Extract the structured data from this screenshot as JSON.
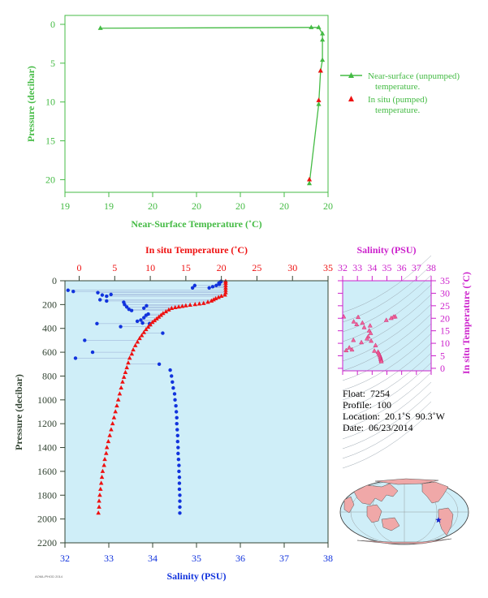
{
  "chart_data": [
    {
      "type": "line",
      "name": "near-surface-temperature-profile",
      "xlabel": "Near-Surface Temperature (˚C)",
      "ylabel": "Pressure (decibar)",
      "xticks": [
        "19",
        "19",
        "20",
        "20",
        "20",
        "20",
        "20"
      ],
      "yticks": [
        "0",
        "5",
        "10",
        "15",
        "20"
      ],
      "ylim": [
        22,
        -1
      ],
      "legend": [
        "Near-surface (unpumped) temperature.",
        "In situ (pumped) temperature."
      ],
      "legend_placement": "right",
      "colors": {
        "near_surface": "#44bb44",
        "in_situ": "#dd0000",
        "axis": "#44bb44"
      },
      "series": [
        {
          "name": "Near-surface (unpumped) temperature.",
          "points": [
            {
              "x": 19.39,
              "y": 0.5
            },
            {
              "x": 20.52,
              "y": 0.4
            },
            {
              "x": 20.56,
              "y": 0.4
            },
            {
              "x": 20.58,
              "y": 1.2
            },
            {
              "x": 20.58,
              "y": 2.0
            },
            {
              "x": 20.58,
              "y": 4.6
            },
            {
              "x": 20.57,
              "y": 6.0
            },
            {
              "x": 20.56,
              "y": 10.3
            },
            {
              "x": 20.51,
              "y": 20.5
            }
          ]
        },
        {
          "name": "In situ (pumped) temperature.",
          "points": [
            {
              "x": 20.57,
              "y": 6.0
            },
            {
              "x": 20.56,
              "y": 9.8
            },
            {
              "x": 20.51,
              "y": 20.0
            }
          ]
        }
      ]
    },
    {
      "type": "scatter",
      "name": "temperature-salinity-vs-pressure",
      "xlabel": "Salinity (PSU)",
      "x2label": "In situ Temperature (˚C)",
      "ylabel": "Pressure (decibar)",
      "xlim": [
        32,
        38
      ],
      "x2lim": [
        -2,
        35
      ],
      "ylim": [
        0,
        2200
      ],
      "xticks": [
        "32",
        "33",
        "34",
        "35",
        "36",
        "37",
        "38"
      ],
      "x2ticks": [
        "0",
        "5",
        "10",
        "15",
        "20",
        "25",
        "30",
        "35"
      ],
      "yticks": [
        "0",
        "200",
        "400",
        "600",
        "800",
        "1000",
        "1200",
        "1400",
        "1600",
        "1800",
        "2000",
        "2200"
      ],
      "colors": {
        "salinity": "#1133dd",
        "temperature": "#ee1111",
        "background": "#cfeef8",
        "axis": "#334433"
      },
      "series": [
        {
          "name": "Salinity",
          "points": [
            {
              "s": 35.56,
              "p": 5
            },
            {
              "s": 35.55,
              "p": 10
            },
            {
              "s": 35.51,
              "p": 20
            },
            {
              "s": 35.52,
              "p": 30
            },
            {
              "s": 35.45,
              "p": 40
            },
            {
              "s": 35.37,
              "p": 50
            },
            {
              "s": 35.29,
              "p": 60
            },
            {
              "s": 34.96,
              "p": 40
            },
            {
              "s": 34.91,
              "p": 60
            },
            {
              "s": 32.07,
              "p": 80
            },
            {
              "s": 32.19,
              "p": 90
            },
            {
              "s": 32.75,
              "p": 100
            },
            {
              "s": 32.85,
              "p": 120
            },
            {
              "s": 33.05,
              "p": 115
            },
            {
              "s": 32.95,
              "p": 130
            },
            {
              "s": 32.8,
              "p": 160
            },
            {
              "s": 32.95,
              "p": 170
            },
            {
              "s": 33.34,
              "p": 180
            },
            {
              "s": 33.36,
              "p": 200
            },
            {
              "s": 33.41,
              "p": 220
            },
            {
              "s": 33.46,
              "p": 240
            },
            {
              "s": 33.52,
              "p": 250
            },
            {
              "s": 33.8,
              "p": 230
            },
            {
              "s": 33.86,
              "p": 210
            },
            {
              "s": 33.9,
              "p": 280
            },
            {
              "s": 33.85,
              "p": 290
            },
            {
              "s": 33.8,
              "p": 310
            },
            {
              "s": 33.73,
              "p": 330
            },
            {
              "s": 33.65,
              "p": 340
            },
            {
              "s": 33.77,
              "p": 355
            },
            {
              "s": 33.93,
              "p": 360
            },
            {
              "s": 33.94,
              "p": 370
            },
            {
              "s": 33.27,
              "p": 385
            },
            {
              "s": 32.73,
              "p": 360
            },
            {
              "s": 34.23,
              "p": 440
            },
            {
              "s": 32.45,
              "p": 500
            },
            {
              "s": 32.63,
              "p": 600
            },
            {
              "s": 32.24,
              "p": 650
            },
            {
              "s": 34.15,
              "p": 700
            },
            {
              "s": 34.4,
              "p": 750
            },
            {
              "s": 34.43,
              "p": 800
            },
            {
              "s": 34.45,
              "p": 850
            },
            {
              "s": 34.47,
              "p": 900
            },
            {
              "s": 34.5,
              "p": 950
            },
            {
              "s": 34.51,
              "p": 1000
            },
            {
              "s": 34.53,
              "p": 1050
            },
            {
              "s": 34.54,
              "p": 1100
            },
            {
              "s": 34.55,
              "p": 1150
            },
            {
              "s": 34.55,
              "p": 1200
            },
            {
              "s": 34.56,
              "p": 1250
            },
            {
              "s": 34.57,
              "p": 1300
            },
            {
              "s": 34.57,
              "p": 1350
            },
            {
              "s": 34.58,
              "p": 1400
            },
            {
              "s": 34.58,
              "p": 1450
            },
            {
              "s": 34.59,
              "p": 1500
            },
            {
              "s": 34.6,
              "p": 1550
            },
            {
              "s": 34.6,
              "p": 1600
            },
            {
              "s": 34.61,
              "p": 1650
            },
            {
              "s": 34.61,
              "p": 1700
            },
            {
              "s": 34.61,
              "p": 1750
            },
            {
              "s": 34.62,
              "p": 1800
            },
            {
              "s": 34.62,
              "p": 1850
            },
            {
              "s": 34.62,
              "p": 1900
            },
            {
              "s": 34.62,
              "p": 1950
            }
          ]
        },
        {
          "name": "In situ Temperature",
          "points": [
            {
              "t": 20.6,
              "p": 5
            },
            {
              "t": 20.6,
              "p": 20
            },
            {
              "t": 20.6,
              "p": 40
            },
            {
              "t": 20.6,
              "p": 60
            },
            {
              "t": 20.6,
              "p": 80
            },
            {
              "t": 20.6,
              "p": 100
            },
            {
              "t": 20.5,
              "p": 120
            },
            {
              "t": 20.0,
              "p": 130
            },
            {
              "t": 19.6,
              "p": 140
            },
            {
              "t": 19.2,
              "p": 150
            },
            {
              "t": 18.9,
              "p": 160
            },
            {
              "t": 18.6,
              "p": 170
            },
            {
              "t": 18.1,
              "p": 180
            },
            {
              "t": 17.5,
              "p": 190
            },
            {
              "t": 16.9,
              "p": 195
            },
            {
              "t": 16.3,
              "p": 200
            },
            {
              "t": 15.6,
              "p": 205
            },
            {
              "t": 15.0,
              "p": 210
            },
            {
              "t": 14.5,
              "p": 215
            },
            {
              "t": 14.0,
              "p": 220
            },
            {
              "t": 13.5,
              "p": 225
            },
            {
              "t": 13.0,
              "p": 232
            },
            {
              "t": 12.6,
              "p": 245
            },
            {
              "t": 12.2,
              "p": 260
            },
            {
              "t": 11.8,
              "p": 275
            },
            {
              "t": 11.5,
              "p": 290
            },
            {
              "t": 11.2,
              "p": 305
            },
            {
              "t": 10.9,
              "p": 320
            },
            {
              "t": 10.6,
              "p": 335
            },
            {
              "t": 10.3,
              "p": 350
            },
            {
              "t": 10.0,
              "p": 370
            },
            {
              "t": 9.7,
              "p": 390
            },
            {
              "t": 9.4,
              "p": 410
            },
            {
              "t": 9.1,
              "p": 435
            },
            {
              "t": 8.8,
              "p": 460
            },
            {
              "t": 8.5,
              "p": 485
            },
            {
              "t": 8.2,
              "p": 515
            },
            {
              "t": 7.9,
              "p": 545
            },
            {
              "t": 7.6,
              "p": 580
            },
            {
              "t": 7.4,
              "p": 615
            },
            {
              "t": 7.1,
              "p": 650
            },
            {
              "t": 6.9,
              "p": 690
            },
            {
              "t": 6.7,
              "p": 730
            },
            {
              "t": 6.5,
              "p": 770
            },
            {
              "t": 6.3,
              "p": 810
            },
            {
              "t": 6.1,
              "p": 850
            },
            {
              "t": 5.9,
              "p": 900
            },
            {
              "t": 5.7,
              "p": 950
            },
            {
              "t": 5.5,
              "p": 1000
            },
            {
              "t": 5.3,
              "p": 1050
            },
            {
              "t": 5.1,
              "p": 1100
            },
            {
              "t": 4.9,
              "p": 1150
            },
            {
              "t": 4.7,
              "p": 1200
            },
            {
              "t": 4.5,
              "p": 1250
            },
            {
              "t": 4.3,
              "p": 1300
            },
            {
              "t": 4.1,
              "p": 1350
            },
            {
              "t": 3.9,
              "p": 1400
            },
            {
              "t": 3.8,
              "p": 1450
            },
            {
              "t": 3.6,
              "p": 1500
            },
            {
              "t": 3.5,
              "p": 1550
            },
            {
              "t": 3.3,
              "p": 1600
            },
            {
              "t": 3.2,
              "p": 1650
            },
            {
              "t": 3.1,
              "p": 1700
            },
            {
              "t": 3.0,
              "p": 1750
            },
            {
              "t": 2.9,
              "p": 1800
            },
            {
              "t": 2.8,
              "p": 1850
            },
            {
              "t": 2.8,
              "p": 1900
            },
            {
              "t": 2.7,
              "p": 1950
            }
          ]
        }
      ]
    },
    {
      "type": "scatter",
      "name": "ts-diagram",
      "xlabel": "Salinity (PSU)",
      "ylabel": "In situ Temperature (˚C)",
      "xlim": [
        32,
        38
      ],
      "ylim": [
        -1,
        35
      ],
      "xticks": [
        "32",
        "33",
        "34",
        "35",
        "36",
        "37",
        "38"
      ],
      "yticks": [
        "0",
        "5",
        "10",
        "15",
        "20",
        "25",
        "30",
        "35"
      ],
      "colors": {
        "points": "#ee1177",
        "axis": "#cc22cc",
        "background": "#cfeef8"
      },
      "series": [
        {
          "name": "T-S",
          "points": [
            {
              "s": 35.56,
              "t": 20.6
            },
            {
              "s": 35.45,
              "t": 20.5
            },
            {
              "s": 35.29,
              "t": 20.0
            },
            {
              "s": 34.96,
              "t": 19.2
            },
            {
              "s": 32.07,
              "t": 20.6
            },
            {
              "s": 32.75,
              "t": 18.6
            },
            {
              "s": 33.05,
              "t": 20.4
            },
            {
              "s": 32.95,
              "t": 17.5
            },
            {
              "s": 33.34,
              "t": 18.1
            },
            {
              "s": 33.46,
              "t": 16.3
            },
            {
              "s": 33.8,
              "t": 15.0
            },
            {
              "s": 33.86,
              "t": 17.0
            },
            {
              "s": 33.9,
              "t": 14.0
            },
            {
              "s": 33.73,
              "t": 12.6
            },
            {
              "s": 33.65,
              "t": 11.8
            },
            {
              "s": 33.93,
              "t": 10.9
            },
            {
              "s": 33.27,
              "t": 10.3
            },
            {
              "s": 32.73,
              "t": 11.2
            },
            {
              "s": 34.23,
              "t": 9.1
            },
            {
              "s": 32.45,
              "t": 8.2
            },
            {
              "s": 32.63,
              "t": 7.4
            },
            {
              "s": 32.24,
              "t": 7.1
            },
            {
              "s": 34.15,
              "t": 6.9
            },
            {
              "s": 34.4,
              "t": 6.5
            },
            {
              "s": 34.45,
              "t": 5.9
            },
            {
              "s": 34.5,
              "t": 5.3
            },
            {
              "s": 34.54,
              "t": 4.7
            },
            {
              "s": 34.57,
              "t": 4.1
            },
            {
              "s": 34.59,
              "t": 3.6
            },
            {
              "s": 34.61,
              "t": 3.1
            },
            {
              "s": 34.62,
              "t": 2.7
            }
          ]
        }
      ]
    }
  ],
  "profile_info": {
    "float": "Float:  7254",
    "profile": "Profile:  100",
    "location": "Location:  20.1˚S  90.3˚W",
    "date": "Date:  06/23/2014"
  },
  "map": {
    "marker": "star",
    "colors": {
      "ocean": "#cfeef8",
      "land": "#f0a8a8",
      "marker": "#1122cc"
    }
  },
  "footer": {
    "label": "AOML/PHOD 2014"
  }
}
